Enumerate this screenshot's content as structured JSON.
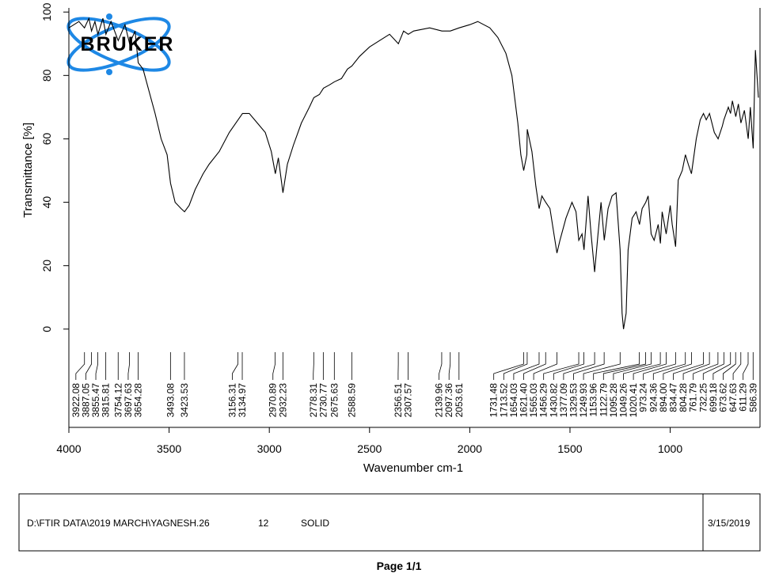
{
  "chart_data": {
    "type": "line",
    "ylabel": "Transmittance [%]",
    "xlabel": "Wavenumber cm-1",
    "logo_text": "BRUKER",
    "color": "#000000",
    "xlim": [
      4000,
      552
    ],
    "ylim": [
      -31,
      101.3
    ],
    "xticks": [
      4000,
      3500,
      3000,
      2500,
      2000,
      1500,
      1000
    ],
    "yticks": [
      0,
      20,
      40,
      60,
      80,
      100
    ],
    "x": [
      4000,
      3950,
      3922,
      3900,
      3887,
      3870,
      3855,
      3830,
      3815,
      3790,
      3754,
      3720,
      3697,
      3670,
      3654,
      3630,
      3600,
      3570,
      3540,
      3510,
      3493,
      3470,
      3440,
      3423,
      3400,
      3370,
      3330,
      3300,
      3250,
      3200,
      3156,
      3134,
      3100,
      3060,
      3020,
      2990,
      2970,
      2955,
      2932,
      2910,
      2880,
      2840,
      2800,
      2778,
      2750,
      2730,
      2700,
      2675,
      2640,
      2610,
      2588,
      2550,
      2500,
      2450,
      2400,
      2356,
      2330,
      2307,
      2280,
      2200,
      2139,
      2097,
      2053,
      2000,
      1960,
      1900,
      1860,
      1820,
      1790,
      1760,
      1745,
      1731,
      1715,
      1713,
      1690,
      1670,
      1654,
      1640,
      1621,
      1600,
      1580,
      1565,
      1550,
      1520,
      1490,
      1470,
      1456,
      1440,
      1430,
      1410,
      1395,
      1377,
      1360,
      1345,
      1329,
      1310,
      1290,
      1270,
      1250,
      1240,
      1233,
      1220,
      1210,
      1190,
      1170,
      1153,
      1140,
      1122,
      1110,
      1095,
      1080,
      1060,
      1049,
      1040,
      1020,
      1000,
      990,
      973,
      960,
      940,
      924,
      910,
      894,
      870,
      850,
      834,
      820,
      804,
      780,
      761,
      740,
      732,
      710,
      699,
      690,
      673,
      660,
      647,
      630,
      611,
      600,
      586,
      575,
      560
    ],
    "values": [
      95,
      97,
      95,
      98,
      94,
      97,
      93,
      98,
      93,
      97,
      91,
      96,
      90,
      94,
      84,
      82,
      75,
      68,
      60,
      55,
      46,
      40,
      38,
      37,
      39,
      44,
      49,
      52,
      56,
      62,
      66,
      68,
      68,
      65,
      62,
      56,
      49,
      54,
      43,
      52,
      58,
      65,
      70,
      73,
      74,
      76,
      77,
      78,
      79,
      82,
      83,
      86,
      89,
      91,
      93,
      90,
      94,
      93,
      94,
      95,
      94,
      94,
      95,
      96,
      97,
      95,
      92,
      87,
      80,
      65,
      55,
      50,
      55,
      63,
      56,
      45,
      38,
      42,
      40,
      38,
      30,
      24,
      28,
      35,
      40,
      37,
      28,
      30,
      25,
      42,
      30,
      18,
      30,
      40,
      28,
      38,
      42,
      43,
      25,
      5,
      0,
      5,
      25,
      35,
      37,
      33,
      38,
      40,
      42,
      30,
      28,
      33,
      27,
      37,
      30,
      39,
      33,
      26,
      47,
      50,
      55,
      52,
      49,
      60,
      66,
      68,
      66,
      68,
      62,
      60,
      64,
      66,
      70,
      68,
      72,
      67,
      71,
      65,
      69,
      60,
      70,
      57,
      88,
      73
    ],
    "peak_groups": [
      [
        3922.08,
        3887.05,
        3855.47,
        3815.81,
        3754.12,
        3697.63,
        3654.28
      ],
      [
        3493.08,
        3423.53
      ],
      [
        3156.31,
        3134.97
      ],
      [
        2970.89,
        2932.23
      ],
      [
        2778.31,
        2730.77,
        2675.63,
        2588.59
      ],
      [
        2356.51,
        2307.57
      ],
      [
        2139.96,
        2097.36,
        2053.61
      ],
      [
        1731.48,
        1713.52,
        1654.03,
        {
          "value": 1621.4,
          "label": "1621.40"
        },
        1565.03,
        1456.29,
        1430.82,
        1377.09,
        1329.53,
        1249.93,
        1153.96,
        1122.79,
        1095.28,
        1049.26,
        1020.41,
        973.24,
        924.36,
        {
          "value": 894,
          "label": "894.00"
        },
        834.47,
        804.28,
        761.79,
        732.25,
        699.18,
        673.62,
        647.63,
        611.29,
        586.39
      ]
    ]
  },
  "footer": {
    "file": "D:\\FTIR DATA\\2019 MARCH\\YAGNESH.26",
    "scans": "12",
    "sample": "SOLID",
    "date": "3/15/2019"
  },
  "page_label": "Page 1/1"
}
